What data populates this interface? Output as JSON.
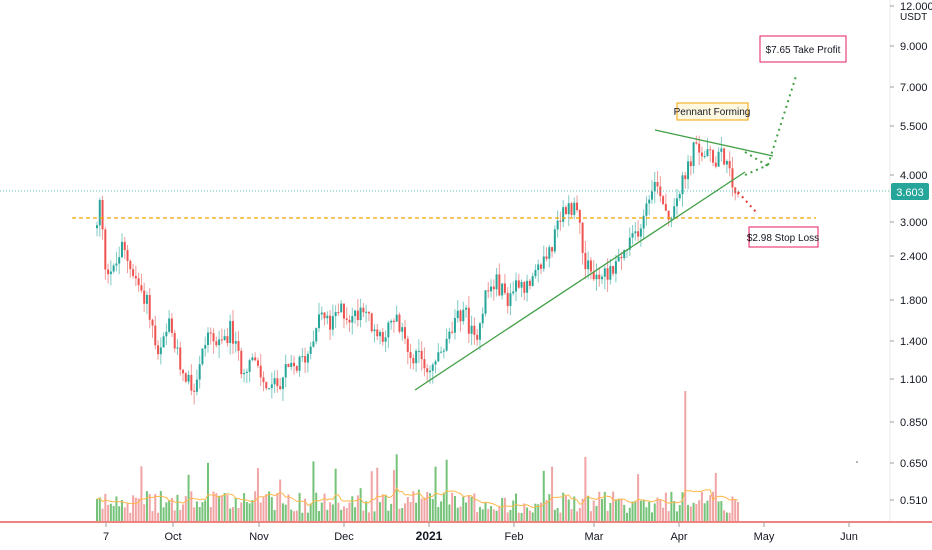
{
  "chart_data": {
    "type": "candlestick",
    "currency": "USDT",
    "current_price": "3.603",
    "y_ticks": [
      "12.000",
      "9.000",
      "7.000",
      "5.500",
      "4.000",
      "3.000",
      "2.400",
      "1.800",
      "1.400",
      "1.100",
      "0.850",
      "0.650",
      "0.510"
    ],
    "x_ticks": [
      {
        "label": "7",
        "year": false
      },
      {
        "label": "Oct",
        "year": false
      },
      {
        "label": "Nov",
        "year": false
      },
      {
        "label": "Dec",
        "year": false
      },
      {
        "label": "2021",
        "year": true
      },
      {
        "label": "Feb",
        "year": false
      },
      {
        "label": "Mar",
        "year": false
      },
      {
        "label": "Apr",
        "year": false
      },
      {
        "label": "May",
        "year": false
      },
      {
        "label": "Jun",
        "year": false
      }
    ],
    "annotations": {
      "take_profit": "$7.65 Take Profit",
      "pennant": "Pennant Forming",
      "stop_loss": "$2.98 Stop Loss"
    },
    "levels": {
      "stop_loss": 2.98,
      "take_profit": 7.65,
      "current": 3.603
    },
    "price_path": [
      {
        "day": 0,
        "price": 2.9
      },
      {
        "day": 1,
        "price": 3.4
      },
      {
        "day": 3,
        "price": 2.3
      },
      {
        "day": 6,
        "price": 2.2
      },
      {
        "day": 9,
        "price": 2.55
      },
      {
        "day": 12,
        "price": 2.3
      },
      {
        "day": 15,
        "price": 2.0
      },
      {
        "day": 18,
        "price": 1.85
      },
      {
        "day": 22,
        "price": 1.25
      },
      {
        "day": 26,
        "price": 1.55
      },
      {
        "day": 30,
        "price": 1.2
      },
      {
        "day": 35,
        "price": 1.05
      },
      {
        "day": 40,
        "price": 1.5
      },
      {
        "day": 44,
        "price": 1.35
      },
      {
        "day": 48,
        "price": 1.52
      },
      {
        "day": 52,
        "price": 1.2
      },
      {
        "day": 56,
        "price": 1.25
      },
      {
        "day": 60,
        "price": 1.08
      },
      {
        "day": 64,
        "price": 1.05
      },
      {
        "day": 68,
        "price": 1.15
      },
      {
        "day": 72,
        "price": 1.2
      },
      {
        "day": 76,
        "price": 1.3
      },
      {
        "day": 80,
        "price": 1.7
      },
      {
        "day": 84,
        "price": 1.55
      },
      {
        "day": 88,
        "price": 1.72
      },
      {
        "day": 92,
        "price": 1.62
      },
      {
        "day": 96,
        "price": 1.8
      },
      {
        "day": 100,
        "price": 1.45
      },
      {
        "day": 104,
        "price": 1.5
      },
      {
        "day": 108,
        "price": 1.6
      },
      {
        "day": 112,
        "price": 1.35
      },
      {
        "day": 116,
        "price": 1.25
      },
      {
        "day": 120,
        "price": 1.18
      },
      {
        "day": 124,
        "price": 1.3
      },
      {
        "day": 128,
        "price": 1.5
      },
      {
        "day": 132,
        "price": 1.75
      },
      {
        "day": 136,
        "price": 1.4
      },
      {
        "day": 140,
        "price": 1.9
      },
      {
        "day": 144,
        "price": 2.05
      },
      {
        "day": 148,
        "price": 1.85
      },
      {
        "day": 152,
        "price": 2.1
      },
      {
        "day": 156,
        "price": 1.95
      },
      {
        "day": 160,
        "price": 2.3
      },
      {
        "day": 164,
        "price": 2.6
      },
      {
        "day": 168,
        "price": 3.2
      },
      {
        "day": 172,
        "price": 3.4
      },
      {
        "day": 174,
        "price": 3.0
      },
      {
        "day": 176,
        "price": 2.3
      },
      {
        "day": 180,
        "price": 2.1
      },
      {
        "day": 184,
        "price": 2.2
      },
      {
        "day": 188,
        "price": 2.35
      },
      {
        "day": 192,
        "price": 2.6
      },
      {
        "day": 196,
        "price": 3.0
      },
      {
        "day": 200,
        "price": 3.9
      },
      {
        "day": 203,
        "price": 3.7
      },
      {
        "day": 206,
        "price": 3.1
      },
      {
        "day": 209,
        "price": 3.6
      },
      {
        "day": 212,
        "price": 4.0
      },
      {
        "day": 215,
        "price": 4.8
      },
      {
        "day": 218,
        "price": 4.7
      },
      {
        "day": 222,
        "price": 4.5
      },
      {
        "day": 226,
        "price": 4.6
      },
      {
        "day": 229,
        "price": 3.8
      },
      {
        "day": 231,
        "price": 3.603
      }
    ],
    "volume": {
      "max_bar_fraction": 1.0
    }
  }
}
